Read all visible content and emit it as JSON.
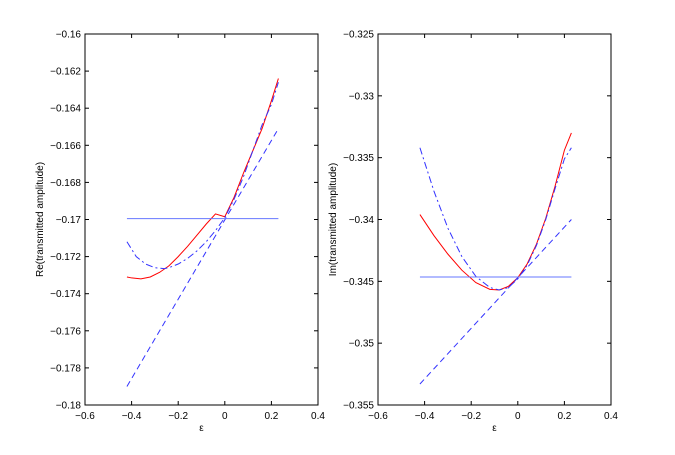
{
  "chart_data": [
    {
      "type": "line",
      "xlabel": "ε",
      "ylabel": "Re(transmitted amplitude)",
      "xlim": [
        -0.6,
        0.4
      ],
      "ylim": [
        -0.18,
        -0.16
      ],
      "xticks": [
        -0.6,
        -0.4,
        -0.2,
        0,
        0.2,
        0.4
      ],
      "xtick_labels": [
        "−0.6",
        "−0.4",
        "−0.2",
        "0",
        "0.2",
        "0.4"
      ],
      "yticks": [
        -0.18,
        -0.178,
        -0.176,
        -0.174,
        -0.172,
        -0.17,
        -0.168,
        -0.166,
        -0.164,
        -0.162,
        -0.16
      ],
      "ytick_labels": [
        "−0.18",
        "−0.178",
        "−0.176",
        "−0.174",
        "−0.172",
        "−0.17",
        "−0.168",
        "−0.166",
        "−0.164",
        "−0.162",
        "−0.16"
      ],
      "grid": false,
      "series": [
        {
          "style": "solid-red",
          "color": "#ff0000",
          "dash": "",
          "x": [
            -0.42,
            -0.4,
            -0.36,
            -0.32,
            -0.28,
            -0.24,
            -0.2,
            -0.16,
            -0.12,
            -0.08,
            -0.04,
            0,
            0.04,
            0.08,
            0.12,
            0.16,
            0.2,
            0.23
          ],
          "y": [
            -0.1731,
            -0.17315,
            -0.1732,
            -0.1731,
            -0.17285,
            -0.1725,
            -0.172,
            -0.17145,
            -0.17085,
            -0.17025,
            -0.1697,
            -0.16985,
            -0.1688,
            -0.1675,
            -0.1663,
            -0.1651,
            -0.1636,
            -0.1624
          ]
        },
        {
          "style": "dash-dot-blue",
          "color": "#3333ff",
          "dash": "7,3,2,3",
          "x": [
            -0.42,
            -0.38,
            -0.34,
            -0.3,
            -0.26,
            -0.24,
            -0.2,
            -0.16,
            -0.12,
            -0.08,
            -0.04,
            0,
            0.04,
            0.08,
            0.12,
            0.16,
            0.2,
            0.23
          ],
          "y": [
            -0.1712,
            -0.172,
            -0.1724,
            -0.1726,
            -0.17265,
            -0.1726,
            -0.1724,
            -0.1721,
            -0.1717,
            -0.1712,
            -0.1706,
            -0.1699,
            -0.1689,
            -0.1677,
            -0.1663,
            -0.1649,
            -0.1638,
            -0.1626
          ]
        },
        {
          "style": "dashed-blue",
          "color": "#3333ff",
          "dash": "6,4",
          "x": [
            -0.42,
            0.23
          ],
          "y": [
            -0.179,
            -0.1651
          ]
        },
        {
          "style": "solid-blue",
          "color": "#6677ff",
          "dash": "",
          "x": [
            -0.42,
            0.23
          ],
          "y": [
            -0.16995,
            -0.16995
          ]
        }
      ]
    },
    {
      "type": "line",
      "xlabel": "ε",
      "ylabel": "Im(transmitted amplitude)",
      "xlim": [
        -0.6,
        0.4
      ],
      "ylim": [
        -0.355,
        -0.325
      ],
      "xticks": [
        -0.6,
        -0.4,
        -0.2,
        0,
        0.2,
        0.4
      ],
      "xtick_labels": [
        "−0.6",
        "−0.4",
        "−0.2",
        "0",
        "0.2",
        "0.4"
      ],
      "yticks": [
        -0.355,
        -0.35,
        -0.345,
        -0.34,
        -0.335,
        -0.33,
        -0.325
      ],
      "ytick_labels": [
        "−0.355",
        "−0.35",
        "−0.345",
        "−0.34",
        "−0.335",
        "−0.33",
        "−0.325"
      ],
      "grid": false,
      "series": [
        {
          "style": "solid-red",
          "color": "#ff0000",
          "dash": "",
          "x": [
            -0.42,
            -0.36,
            -0.3,
            -0.24,
            -0.18,
            -0.12,
            -0.08,
            -0.04,
            0,
            0.04,
            0.08,
            0.12,
            0.16,
            0.2,
            0.23
          ],
          "y": [
            -0.3396,
            -0.3413,
            -0.3428,
            -0.3441,
            -0.3451,
            -0.34565,
            -0.3457,
            -0.3454,
            -0.3447,
            -0.3436,
            -0.342,
            -0.3399,
            -0.3373,
            -0.3344,
            -0.333
          ]
        },
        {
          "style": "dash-dot-blue",
          "color": "#3333ff",
          "dash": "7,3,2,3",
          "x": [
            -0.42,
            -0.36,
            -0.3,
            -0.24,
            -0.18,
            -0.12,
            -0.08,
            -0.04,
            0,
            0.04,
            0.08,
            0.12,
            0.16,
            0.2,
            0.23
          ],
          "y": [
            -0.3342,
            -0.3377,
            -0.3407,
            -0.343,
            -0.3446,
            -0.3455,
            -0.3457,
            -0.3455,
            -0.3448,
            -0.3437,
            -0.3421,
            -0.34,
            -0.3375,
            -0.3351,
            -0.3342
          ]
        },
        {
          "style": "dashed-blue",
          "color": "#3333ff",
          "dash": "6,4",
          "x": [
            -0.42,
            0.23
          ],
          "y": [
            -0.3533,
            -0.34
          ]
        },
        {
          "style": "solid-blue",
          "color": "#6677ff",
          "dash": "",
          "x": [
            -0.42,
            0.23
          ],
          "y": [
            -0.34465,
            -0.34465
          ]
        }
      ]
    }
  ]
}
